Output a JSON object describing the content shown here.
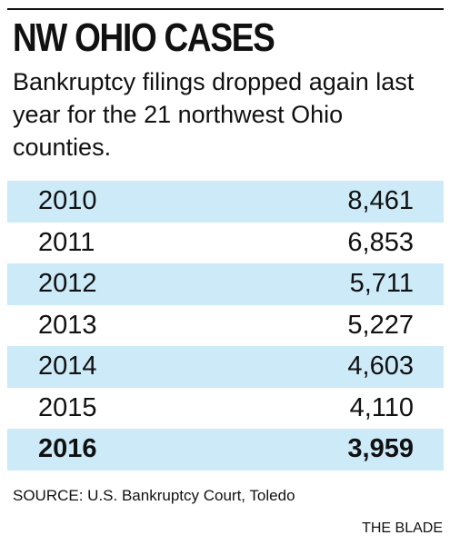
{
  "chart_data": {
    "type": "table",
    "title": "NW OHIO CASES",
    "subtitle": "Bankruptcy filings dropped again last year for the 21 northwest Ohio counties.",
    "categories": [
      "2010",
      "2011",
      "2012",
      "2013",
      "2014",
      "2015",
      "2016"
    ],
    "values": [
      8461,
      6853,
      5711,
      5227,
      4603,
      4110,
      3959
    ],
    "value_labels": [
      "8,461",
      "6,853",
      "5,711",
      "5,227",
      "4,603",
      "4,110",
      "3,959"
    ],
    "highlight_row": "2016",
    "row_shading_color": "#cdeaf8",
    "text_color": "#111111",
    "source": "SOURCE: U.S. Bankruptcy Court, Toledo",
    "credit": "THE BLADE"
  }
}
